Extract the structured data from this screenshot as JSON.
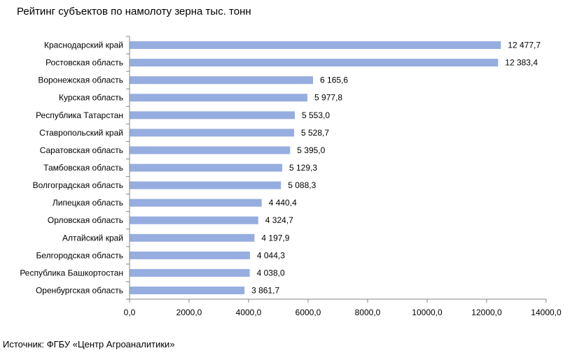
{
  "title": "Рейтинг субъектов по намолоту зерна тыс. тонн",
  "source": "Источник: ФГБУ «Центр Агроаналитики»",
  "chart_data": {
    "type": "bar",
    "orientation": "horizontal",
    "title": "Рейтинг субъектов по намолоту зерна тыс. тонн",
    "xlabel": "",
    "ylabel": "",
    "xlim": [
      0,
      14000
    ],
    "grid": false,
    "legend": "none",
    "bar_color": "#96ADE0",
    "categories": [
      "Краснодарский край",
      "Ростовская область",
      "Воронежская область",
      "Курская область",
      "Республика Татарстан",
      "Ставропольский край",
      "Саратовская область",
      "Тамбовская область",
      "Волгоградская область",
      "Липецкая область",
      "Орловская область",
      "Алтайский край",
      "Белгородская область",
      "Республика Башкортостан",
      "Оренбургская область"
    ],
    "values": [
      12477.7,
      12383.4,
      6165.6,
      5977.8,
      5553.0,
      5528.7,
      5395.0,
      5129.3,
      5088.3,
      4440.4,
      4324.7,
      4197.9,
      4044.3,
      4038.0,
      3861.7
    ],
    "value_labels": [
      "12 477,7",
      "12 383,4",
      "6 165,6",
      "5 977,8",
      "5 553,0",
      "5 528,7",
      "5 395,0",
      "5 129,3",
      "5 088,3",
      "4 440,4",
      "4 324,7",
      "4 197,9",
      "4 044,3",
      "4 038,0",
      "3 861,7"
    ],
    "ticks": [
      0,
      2000,
      4000,
      6000,
      8000,
      10000,
      12000,
      14000
    ],
    "tick_labels": [
      "0,0",
      "2000,0",
      "4000,0",
      "6000,0",
      "8000,0",
      "10000,0",
      "12000,0",
      "14000,0"
    ]
  }
}
